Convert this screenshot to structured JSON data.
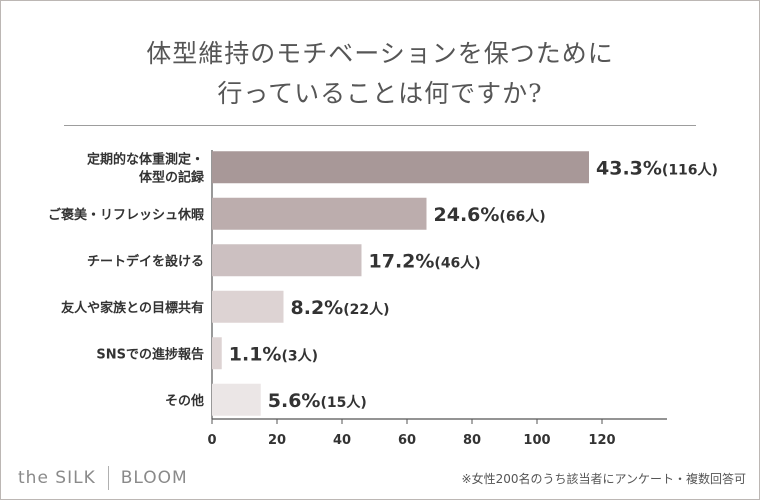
{
  "title_line1": "体型維持のモチベーションを保つために",
  "title_line2": "行っていることは何ですか?",
  "chart_data": {
    "type": "bar",
    "orientation": "horizontal",
    "title": "体型維持のモチベーションを保つために行っていることは何ですか?",
    "categories": [
      [
        "定期的な体重測定・",
        "体型の記録"
      ],
      [
        "ご褒美・リフレッシュ休暇"
      ],
      [
        "チートデイを設ける"
      ],
      [
        "友人や家族との目標共有"
      ],
      [
        "SNSでの進捗報告"
      ],
      [
        "その他"
      ]
    ],
    "values": [
      116,
      66,
      46,
      22,
      3,
      15
    ],
    "percent_labels": [
      "43.3%",
      "24.6%",
      "17.2%",
      "8.2%",
      "1.1%",
      "5.6%"
    ],
    "count_labels": [
      "(116人)",
      "(66人)",
      "(46人)",
      "(22人)",
      "(3人)",
      "(15人)"
    ],
    "bar_colors": [
      "#a89898",
      "#bcadad",
      "#ccc0c1",
      "#ddd3d3",
      "#ddd3d3",
      "#ebe6e6"
    ],
    "xlim": [
      0,
      140
    ],
    "xticks": [
      0,
      20,
      40,
      60,
      80,
      100,
      120
    ],
    "xlabel": "",
    "ylabel": ""
  },
  "footer": {
    "brand_left": "the SILK",
    "brand_right": "BLOOM",
    "note": "※女性200名のうち該当者にアンケート・複数回答可"
  }
}
